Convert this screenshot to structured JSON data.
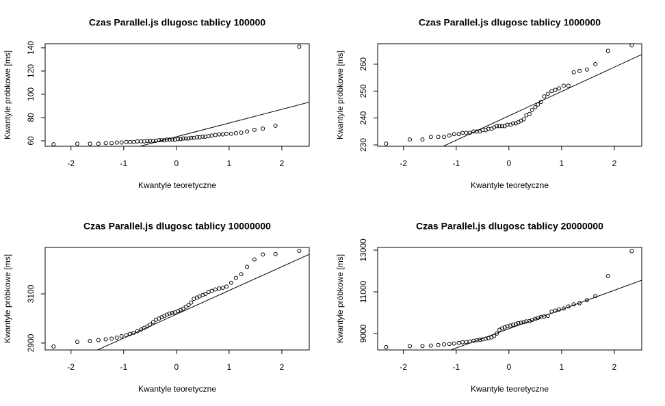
{
  "chart_data": [
    {
      "type": "scatter",
      "title": "Czas Parallel.js dlugosc tablicy  100000",
      "x_label": "Kwantyle teoretyczne",
      "y_label": "Kwantyle próbkowe [ms]",
      "x": [
        -2.33,
        -1.88,
        -1.64,
        -1.48,
        -1.34,
        -1.23,
        -1.13,
        -1.04,
        -0.95,
        -0.88,
        -0.81,
        -0.74,
        -0.67,
        -0.61,
        -0.55,
        -0.5,
        -0.44,
        -0.39,
        -0.33,
        -0.28,
        -0.23,
        -0.18,
        -0.13,
        -0.08,
        -0.03,
        0.03,
        0.08,
        0.13,
        0.18,
        0.23,
        0.28,
        0.33,
        0.39,
        0.44,
        0.5,
        0.55,
        0.61,
        0.67,
        0.74,
        0.81,
        0.88,
        0.95,
        1.04,
        1.13,
        1.23,
        1.34,
        1.48,
        1.64,
        1.88,
        2.33
      ],
      "values": [
        57,
        57.5,
        57.5,
        57.5,
        58,
        58,
        58.5,
        58.5,
        59,
        59,
        59,
        59.5,
        59.5,
        59.5,
        60,
        60,
        60,
        60,
        60.5,
        60.5,
        60.5,
        61,
        61,
        61,
        61,
        61.5,
        61.5,
        62,
        62,
        62,
        62.5,
        62.5,
        63,
        63,
        63.5,
        63.5,
        64,
        64.5,
        65,
        65.5,
        65.5,
        66,
        66,
        66.5,
        67,
        68,
        69.5,
        70.5,
        73,
        141
      ],
      "qqline": {
        "intercept": 63.5,
        "slope": 11.8
      },
      "xlim": [
        -2.49,
        2.52
      ],
      "ylim": [
        55.3,
        143.5
      ],
      "xticks": [
        -2,
        -1,
        0,
        1,
        2
      ],
      "yticks": [
        60,
        80,
        100,
        120,
        140
      ],
      "color": "#000000"
    },
    {
      "type": "scatter",
      "title": "Czas Parallel.js dlugosc tablicy  1000000",
      "x_label": "Kwantyle teoretyczne",
      "y_label": "Kwantyle próbkowe [ms]",
      "x": [
        -2.33,
        -1.88,
        -1.64,
        -1.48,
        -1.34,
        -1.23,
        -1.13,
        -1.04,
        -0.95,
        -0.88,
        -0.81,
        -0.74,
        -0.67,
        -0.61,
        -0.55,
        -0.5,
        -0.44,
        -0.39,
        -0.33,
        -0.28,
        -0.23,
        -0.18,
        -0.13,
        -0.08,
        -0.03,
        0.03,
        0.08,
        0.13,
        0.18,
        0.23,
        0.28,
        0.33,
        0.39,
        0.44,
        0.5,
        0.55,
        0.61,
        0.67,
        0.74,
        0.81,
        0.88,
        0.95,
        1.04,
        1.13,
        1.23,
        1.34,
        1.48,
        1.64,
        1.88,
        2.33
      ],
      "values": [
        230.5,
        232,
        232,
        233,
        233,
        233,
        233.5,
        234,
        234,
        234.5,
        234.5,
        234.5,
        235,
        235,
        235,
        235.5,
        235.5,
        236,
        236,
        236.5,
        237,
        237,
        237,
        237,
        237.5,
        237.5,
        238,
        238,
        238.5,
        239,
        239.5,
        241,
        241.5,
        243,
        244,
        245,
        246,
        248,
        249,
        250,
        250.5,
        251,
        252,
        252,
        257,
        257.5,
        258,
        260,
        265,
        267
      ],
      "qqline": {
        "intercept": 240.8,
        "slope": 9.05
      },
      "xlim": [
        -2.49,
        2.52
      ],
      "ylim": [
        229.5,
        267.6
      ],
      "xticks": [
        -2,
        -1,
        0,
        1,
        2
      ],
      "yticks": [
        230,
        240,
        250,
        260
      ],
      "color": "#000000"
    },
    {
      "type": "scatter",
      "title": "Czas Parallel.js dlugosc tablicy  10000000",
      "x_label": "Kwantyle teoretyczne",
      "y_label": "Kwantyle próbkowe [ms]",
      "x": [
        -2.33,
        -1.88,
        -1.64,
        -1.48,
        -1.34,
        -1.23,
        -1.13,
        -1.04,
        -0.95,
        -0.88,
        -0.81,
        -0.74,
        -0.67,
        -0.61,
        -0.55,
        -0.5,
        -0.44,
        -0.39,
        -0.33,
        -0.28,
        -0.23,
        -0.18,
        -0.13,
        -0.08,
        -0.03,
        0.03,
        0.08,
        0.13,
        0.18,
        0.23,
        0.28,
        0.33,
        0.39,
        0.44,
        0.5,
        0.55,
        0.61,
        0.67,
        0.74,
        0.81,
        0.88,
        0.95,
        1.04,
        1.13,
        1.23,
        1.34,
        1.48,
        1.64,
        1.88,
        2.33
      ],
      "values": [
        2886,
        2905,
        2908,
        2912,
        2915,
        2918,
        2922,
        2928,
        2932,
        2937,
        2942,
        2948,
        2955,
        2962,
        2968,
        2975,
        2985,
        2995,
        3000,
        3005,
        3010,
        3015,
        3020,
        3022,
        3025,
        3030,
        3035,
        3040,
        3048,
        3055,
        3065,
        3080,
        3085,
        3090,
        3095,
        3100,
        3108,
        3112,
        3118,
        3122,
        3125,
        3130,
        3145,
        3165,
        3180,
        3210,
        3240,
        3260,
        3262,
        3275
      ],
      "qqline": {
        "intercept": 3017,
        "slope": 96.8
      },
      "xlim": [
        -2.49,
        2.52
      ],
      "ylim": [
        2872,
        3289
      ],
      "xticks": [
        -2,
        -1,
        0,
        1,
        2
      ],
      "yticks": [
        2900,
        3100
      ],
      "color": "#000000"
    },
    {
      "type": "scatter",
      "title": "Czas Parallel.js dlugosc tablicy  20000000",
      "x_label": "Kwantyle teoretyczne",
      "y_label": "Kwantyle próbkowe [ms]",
      "x": [
        -2.33,
        -1.88,
        -1.64,
        -1.48,
        -1.34,
        -1.23,
        -1.13,
        -1.04,
        -0.95,
        -0.88,
        -0.81,
        -0.74,
        -0.67,
        -0.61,
        -0.55,
        -0.5,
        -0.44,
        -0.39,
        -0.33,
        -0.28,
        -0.23,
        -0.18,
        -0.13,
        -0.08,
        -0.03,
        0.03,
        0.08,
        0.13,
        0.18,
        0.23,
        0.28,
        0.33,
        0.39,
        0.44,
        0.5,
        0.55,
        0.61,
        0.67,
        0.74,
        0.81,
        0.88,
        0.95,
        1.04,
        1.13,
        1.23,
        1.34,
        1.48,
        1.64,
        1.88,
        2.33
      ],
      "values": [
        8350,
        8400,
        8400,
        8420,
        8450,
        8480,
        8500,
        8520,
        8550,
        8580,
        8600,
        8620,
        8650,
        8680,
        8700,
        8720,
        8750,
        8780,
        8820,
        8880,
        9000,
        9180,
        9250,
        9300,
        9350,
        9380,
        9420,
        9450,
        9500,
        9520,
        9550,
        9580,
        9600,
        9650,
        9700,
        9750,
        9800,
        9820,
        9850,
        10050,
        10100,
        10150,
        10200,
        10300,
        10400,
        10450,
        10600,
        10800,
        11750,
        12950
      ],
      "qqline": {
        "intercept": 9229,
        "slope": 924
      },
      "xlim": [
        -2.49,
        2.52
      ],
      "ylim": [
        8213,
        13131
      ],
      "xticks": [
        -2,
        -1,
        0,
        1,
        2
      ],
      "yticks": [
        9000,
        11000,
        13000
      ],
      "color": "#000000"
    }
  ]
}
